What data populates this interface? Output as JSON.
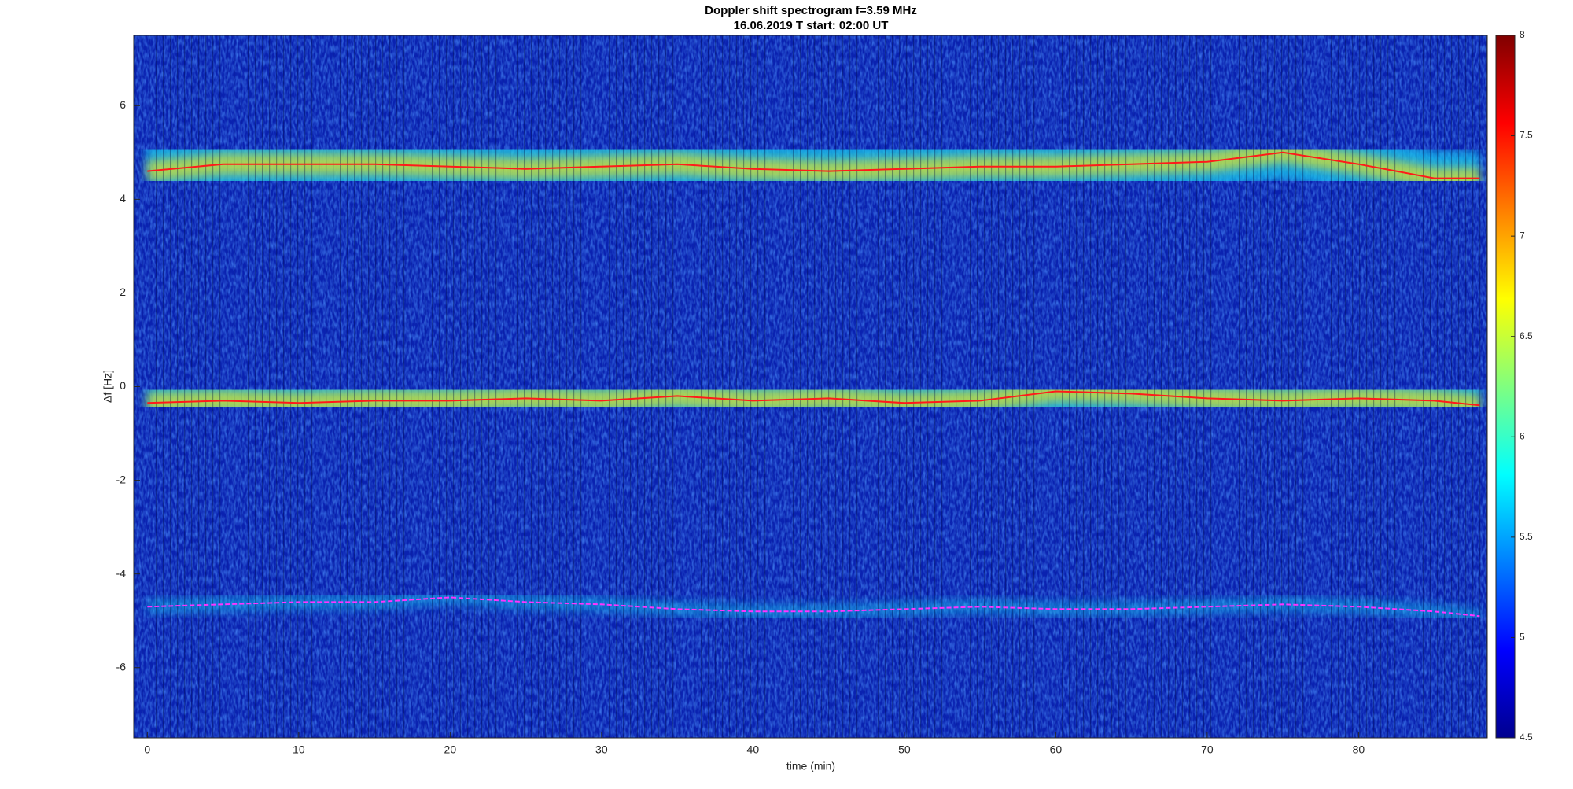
{
  "chart_data": {
    "type": "line",
    "title": "Doppler shift spectrogram f=3.59 MHz",
    "subtitle": "16.06.2019    T start: 02:00 UT",
    "xlabel": "time (min)",
    "ylabel": "Δf [Hz]",
    "xlim": [
      -0.9,
      88.5
    ],
    "ylim": [
      -7.5,
      7.5
    ],
    "xticks": [
      0,
      10,
      20,
      30,
      40,
      50,
      60,
      70,
      80
    ],
    "yticks": [
      -6,
      -4,
      -2,
      0,
      2,
      4,
      6
    ],
    "x": [
      0,
      5,
      10,
      15,
      20,
      25,
      30,
      35,
      40,
      45,
      50,
      55,
      60,
      65,
      70,
      75,
      80,
      85,
      88
    ],
    "series": [
      {
        "color": "#ff1a1a",
        "values": [
          4.6,
          4.75,
          4.75,
          4.75,
          4.7,
          4.65,
          4.7,
          4.75,
          4.65,
          4.6,
          4.65,
          4.7,
          4.7,
          4.75,
          4.8,
          5.0,
          4.75,
          4.45,
          4.45
        ]
      },
      {
        "color": "#ff1a1a",
        "values": [
          -0.35,
          -0.3,
          -0.35,
          -0.3,
          -0.3,
          -0.25,
          -0.3,
          -0.2,
          -0.3,
          -0.25,
          -0.35,
          -0.3,
          -0.1,
          -0.15,
          -0.25,
          -0.3,
          -0.25,
          -0.3,
          -0.4
        ]
      },
      {
        "color": "#ff33ff",
        "values": [
          -4.7,
          -4.65,
          -4.6,
          -4.6,
          -4.5,
          -4.6,
          -4.65,
          -4.75,
          -4.8,
          -4.8,
          -4.75,
          -4.7,
          -4.75,
          -4.75,
          -4.7,
          -4.65,
          -4.7,
          -4.8,
          -4.9
        ]
      }
    ],
    "colorbar": {
      "lim": [
        4.5,
        8
      ],
      "ticks": [
        4.5,
        5,
        5.5,
        6,
        6.5,
        7,
        7.5,
        8
      ]
    }
  }
}
